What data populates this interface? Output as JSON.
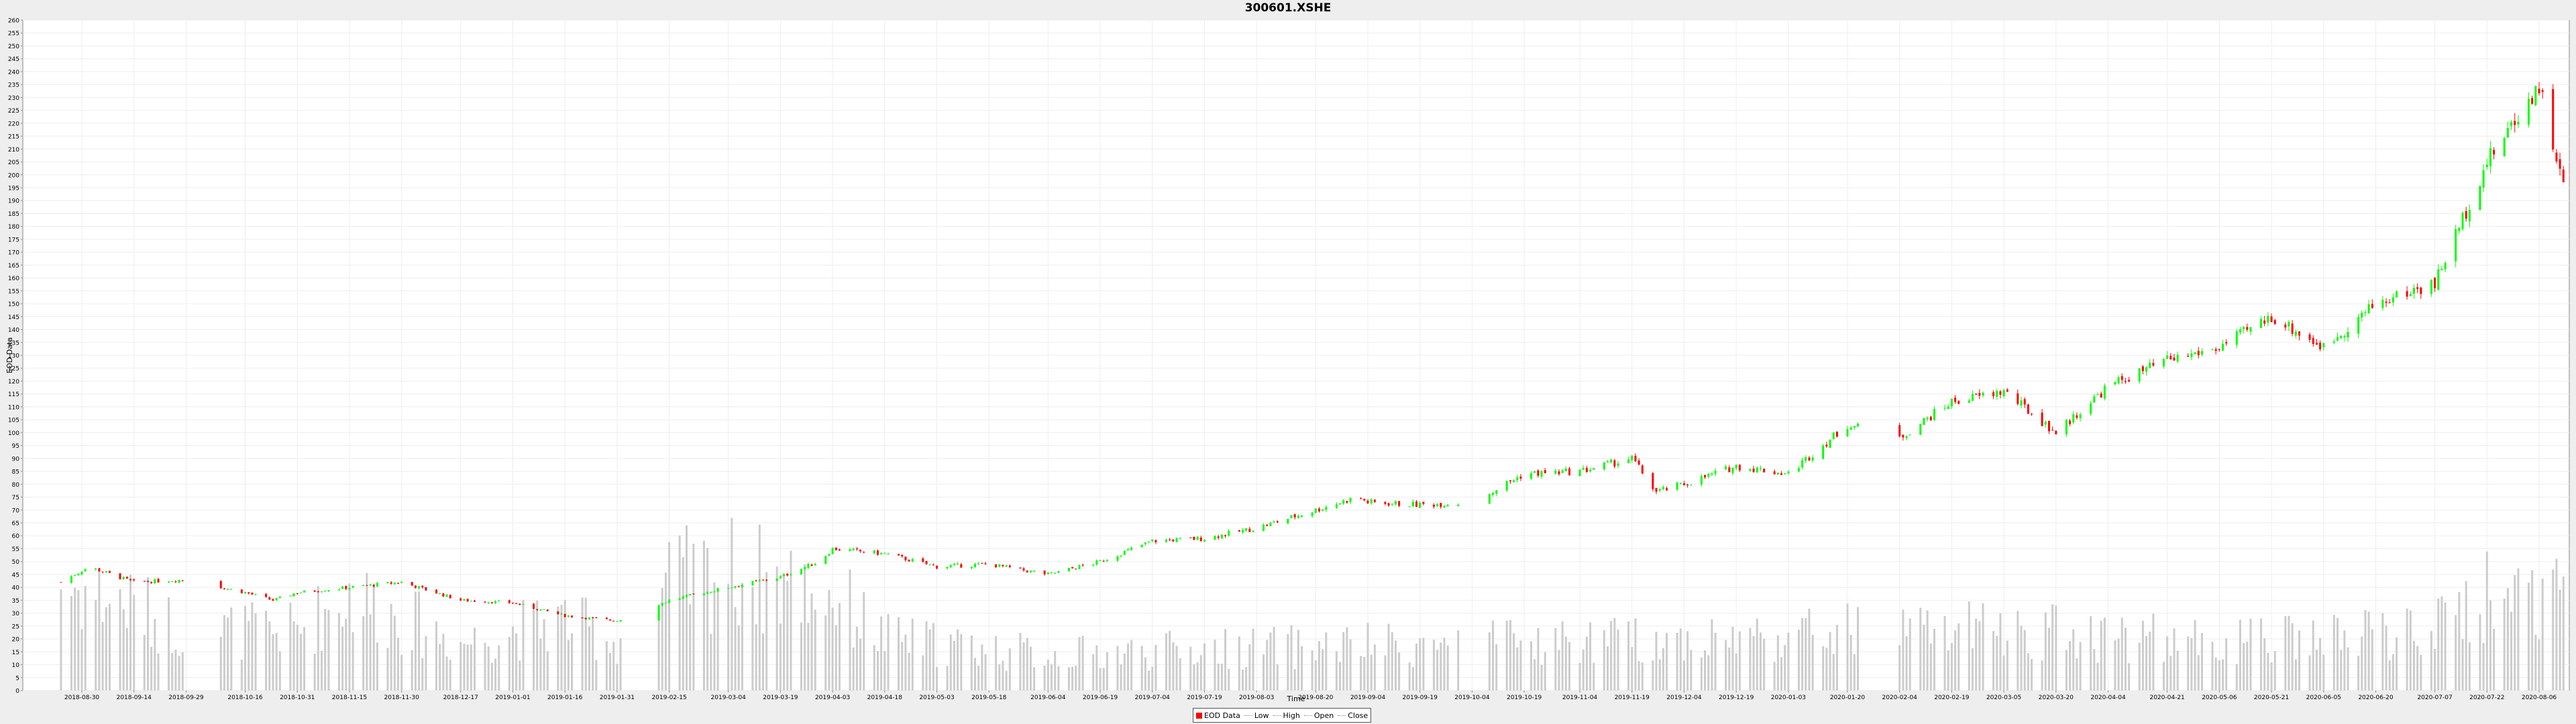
{
  "chart_data": {
    "type": "candlestick",
    "title": "300601.XSHE",
    "xlabel": "Time",
    "ylabel": "EOD Data",
    "ylim": [
      0,
      260
    ],
    "y_tick_step": 5,
    "grid": true,
    "legend_position": "bottom-center",
    "legend": [
      "EOD Data",
      "Low",
      "High",
      "Open",
      "Close"
    ],
    "x_tick_labels": [
      "2018-08-30",
      "2018-09-14",
      "2018-09-29",
      "2018-10-16",
      "2018-10-31",
      "2018-11-15",
      "2018-11-30",
      "2018-12-17",
      "2019-01-01",
      "2019-01-16",
      "2019-01-31",
      "2019-02-15",
      "2019-03-04",
      "2019-03-19",
      "2019-04-03",
      "2019-04-18",
      "2019-05-03",
      "2019-05-18",
      "2019-06-04",
      "2019-06-19",
      "2019-07-04",
      "2019-07-19",
      "2019-08-03",
      "2019-08-20",
      "2019-09-04",
      "2019-09-19",
      "2019-10-04",
      "2019-10-19",
      "2019-11-04",
      "2019-11-19",
      "2019-12-04",
      "2019-12-19",
      "2020-01-03",
      "2020-01-20",
      "2020-02-04",
      "2020-02-19",
      "2020-03-05",
      "2020-03-20",
      "2020-04-04",
      "2020-04-21",
      "2020-05-06",
      "2020-05-21",
      "2020-06-05",
      "2020-06-20",
      "2020-07-07",
      "2020-07-22",
      "2020-08-06"
    ],
    "close_trend": [
      {
        "date": "2018-08-24",
        "value": 42
      },
      {
        "date": "2018-09-01",
        "value": 48
      },
      {
        "date": "2018-09-14",
        "value": 42
      },
      {
        "date": "2018-09-29",
        "value": 43
      },
      {
        "date": "2018-10-16",
        "value": 38
      },
      {
        "date": "2018-10-24",
        "value": 35
      },
      {
        "date": "2018-10-31",
        "value": 38
      },
      {
        "date": "2018-11-15",
        "value": 40
      },
      {
        "date": "2018-11-30",
        "value": 42
      },
      {
        "date": "2018-12-17",
        "value": 35
      },
      {
        "date": "2019-01-01",
        "value": 34
      },
      {
        "date": "2019-01-16",
        "value": 29
      },
      {
        "date": "2019-01-31",
        "value": 27
      },
      {
        "date": "2019-02-15",
        "value": 35
      },
      {
        "date": "2019-03-04",
        "value": 40
      },
      {
        "date": "2019-03-19",
        "value": 44
      },
      {
        "date": "2019-03-30",
        "value": 50
      },
      {
        "date": "2019-04-03",
        "value": 55
      },
      {
        "date": "2019-04-18",
        "value": 53
      },
      {
        "date": "2019-05-03",
        "value": 48
      },
      {
        "date": "2019-05-18",
        "value": 49
      },
      {
        "date": "2019-06-04",
        "value": 45
      },
      {
        "date": "2019-06-19",
        "value": 50
      },
      {
        "date": "2019-07-04",
        "value": 58
      },
      {
        "date": "2019-07-19",
        "value": 59
      },
      {
        "date": "2019-08-03",
        "value": 63
      },
      {
        "date": "2019-08-20",
        "value": 70
      },
      {
        "date": "2019-09-01",
        "value": 75
      },
      {
        "date": "2019-09-04",
        "value": 73
      },
      {
        "date": "2019-09-19",
        "value": 72
      },
      {
        "date": "2019-10-04",
        "value": 73
      },
      {
        "date": "2019-10-19",
        "value": 84
      },
      {
        "date": "2019-11-04",
        "value": 85
      },
      {
        "date": "2019-11-19",
        "value": 90
      },
      {
        "date": "2019-11-26",
        "value": 77
      },
      {
        "date": "2019-12-04",
        "value": 80
      },
      {
        "date": "2019-12-19",
        "value": 87
      },
      {
        "date": "2020-01-03",
        "value": 84
      },
      {
        "date": "2020-01-20",
        "value": 103
      },
      {
        "date": "2020-02-04",
        "value": 98
      },
      {
        "date": "2020-02-19",
        "value": 112
      },
      {
        "date": "2020-03-05",
        "value": 116
      },
      {
        "date": "2020-03-20",
        "value": 100
      },
      {
        "date": "2020-04-04",
        "value": 118
      },
      {
        "date": "2020-04-21",
        "value": 128
      },
      {
        "date": "2020-05-06",
        "value": 133
      },
      {
        "date": "2020-05-21",
        "value": 145
      },
      {
        "date": "2020-06-05",
        "value": 133
      },
      {
        "date": "2020-06-20",
        "value": 150
      },
      {
        "date": "2020-07-07",
        "value": 158
      },
      {
        "date": "2020-07-22",
        "value": 205
      },
      {
        "date": "2020-08-06",
        "value": 235
      },
      {
        "date": "2020-08-13",
        "value": 195
      }
    ],
    "volume_trend": [
      {
        "date": "2018-08-24",
        "value": 45
      },
      {
        "date": "2018-09-14",
        "value": 35
      },
      {
        "date": "2018-09-29",
        "value": 25
      },
      {
        "date": "2018-10-31",
        "value": 25
      },
      {
        "date": "2018-11-15",
        "value": 40
      },
      {
        "date": "2018-12-17",
        "value": 20
      },
      {
        "date": "2019-01-16",
        "value": 30
      },
      {
        "date": "2019-01-31",
        "value": 20
      },
      {
        "date": "2019-02-15",
        "value": 45
      },
      {
        "date": "2019-03-04",
        "value": 50
      },
      {
        "date": "2019-04-03",
        "value": 40
      },
      {
        "date": "2019-04-18",
        "value": 22
      },
      {
        "date": "2019-06-04",
        "value": 15
      },
      {
        "date": "2019-08-03",
        "value": 18
      },
      {
        "date": "2019-10-19",
        "value": 20
      },
      {
        "date": "2019-12-19",
        "value": 22
      },
      {
        "date": "2020-01-20",
        "value": 25
      },
      {
        "date": "2020-03-20",
        "value": 25
      },
      {
        "date": "2020-05-06",
        "value": 20
      },
      {
        "date": "2020-06-05",
        "value": 22
      },
      {
        "date": "2020-07-07",
        "value": 25
      },
      {
        "date": "2020-07-22",
        "value": 40
      },
      {
        "date": "2020-08-13",
        "value": 45
      }
    ],
    "trading_gaps": [
      {
        "from": "2018-09-30",
        "to": "2018-10-08"
      },
      {
        "from": "2019-02-02",
        "to": "2019-02-11"
      },
      {
        "from": "2019-10-01",
        "to": "2019-10-08"
      },
      {
        "from": "2020-01-24",
        "to": "2020-02-03"
      }
    ],
    "colors": {
      "up": "#00ff00",
      "down": "#ff0000",
      "volume": "#cccccc",
      "grid": "#eeeeee",
      "plot_bg": "#ffffff"
    }
  }
}
